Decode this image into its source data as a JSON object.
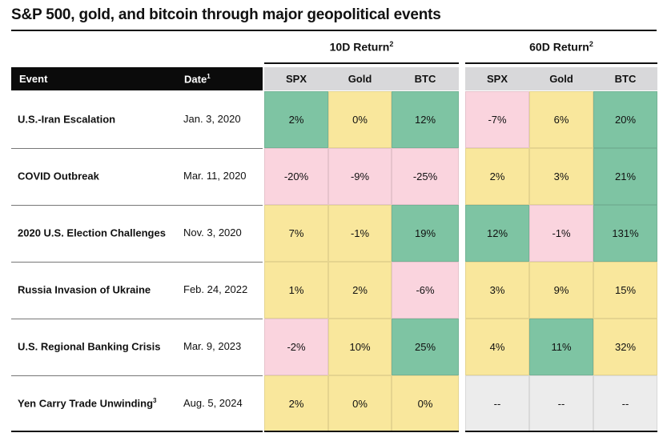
{
  "title": "S&P 500, gold, and bitcoin through major geopolitical events",
  "chart_data": {
    "type": "table",
    "title": "S&P 500, gold, and bitcoin through major geopolitical events",
    "column_groups": [
      {
        "label": "10D Return",
        "sup": "2",
        "columns": [
          "SPX",
          "Gold",
          "BTC"
        ]
      },
      {
        "label": "60D Return",
        "sup": "2",
        "columns": [
          "SPX",
          "Gold",
          "BTC"
        ]
      }
    ],
    "row_header": {
      "event": "Event",
      "date": "Date",
      "date_sup": "1"
    },
    "rows": [
      {
        "event": "U.S.-Iran Escalation",
        "sup": "",
        "date": "Jan. 3, 2020",
        "cells": [
          "2%",
          "0%",
          "12%",
          "-7%",
          "6%",
          "20%"
        ],
        "colors": [
          "green",
          "yellow",
          "green",
          "pink",
          "yellow",
          "green"
        ]
      },
      {
        "event": "COVID Outbreak",
        "sup": "",
        "date": "Mar. 11, 2020",
        "cells": [
          "-20%",
          "-9%",
          "-25%",
          "2%",
          "3%",
          "21%"
        ],
        "colors": [
          "pink",
          "pink",
          "pink",
          "yellow",
          "yellow",
          "green"
        ]
      },
      {
        "event": "2020 U.S. Election Challenges",
        "sup": "",
        "date": "Nov. 3, 2020",
        "cells": [
          "7%",
          "-1%",
          "19%",
          "12%",
          "-1%",
          "131%"
        ],
        "colors": [
          "yellow",
          "yellow",
          "green",
          "green",
          "pink",
          "green"
        ]
      },
      {
        "event": "Russia Invasion of Ukraine",
        "sup": "",
        "date": "Feb. 24, 2022",
        "cells": [
          "1%",
          "2%",
          "-6%",
          "3%",
          "9%",
          "15%"
        ],
        "colors": [
          "yellow",
          "yellow",
          "pink",
          "yellow",
          "yellow",
          "yellow"
        ]
      },
      {
        "event": "U.S. Regional Banking Crisis",
        "sup": "",
        "date": "Mar. 9, 2023",
        "cells": [
          "-2%",
          "10%",
          "25%",
          "4%",
          "11%",
          "32%"
        ],
        "colors": [
          "pink",
          "yellow",
          "green",
          "yellow",
          "green",
          "yellow"
        ]
      },
      {
        "event": "Yen Carry Trade Unwinding",
        "sup": "3",
        "date": "Aug. 5, 2024",
        "cells": [
          "2%",
          "0%",
          "0%",
          "--",
          "--",
          "--"
        ],
        "colors": [
          "yellow",
          "yellow",
          "yellow",
          "gray",
          "gray",
          "gray"
        ]
      }
    ],
    "palette": {
      "green": "#7ec4a3",
      "yellow": "#f9e79c",
      "pink": "#fad4de",
      "gray": "#ececec"
    }
  }
}
